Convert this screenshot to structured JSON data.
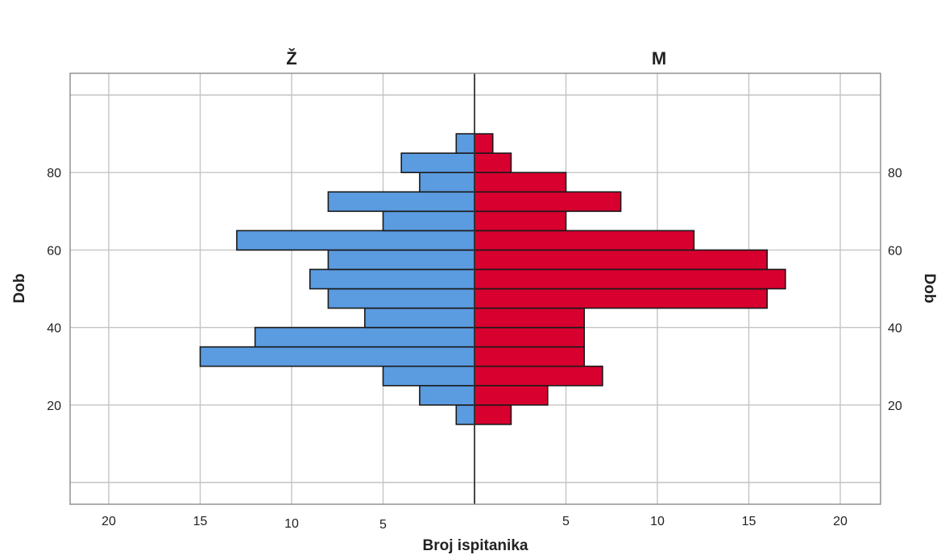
{
  "chart_data": {
    "type": "bar",
    "orientation": "horizontal",
    "ylabel": "Dob",
    "xlabel": "Broj ispitanika",
    "bin_width": 5,
    "ylim": [
      0,
      100
    ],
    "xlim": [
      0,
      20
    ],
    "y_ticks": [
      20,
      40,
      60,
      80
    ],
    "x_tick_labels": [
      "20",
      "15",
      "10",
      "5",
      "5",
      "10",
      "15",
      "20"
    ],
    "grid": true,
    "series": [
      {
        "name": "Ž",
        "color": "#5B9BE0",
        "bins": [
          {
            "age": 17.5,
            "count": 1
          },
          {
            "age": 22.5,
            "count": 3
          },
          {
            "age": 27.5,
            "count": 5
          },
          {
            "age": 32.5,
            "count": 15
          },
          {
            "age": 37.5,
            "count": 12
          },
          {
            "age": 42.5,
            "count": 6
          },
          {
            "age": 47.5,
            "count": 8
          },
          {
            "age": 52.5,
            "count": 9
          },
          {
            "age": 57.5,
            "count": 8
          },
          {
            "age": 62.5,
            "count": 13
          },
          {
            "age": 67.5,
            "count": 5
          },
          {
            "age": 72.5,
            "count": 8
          },
          {
            "age": 77.5,
            "count": 3
          },
          {
            "age": 82.5,
            "count": 4
          },
          {
            "age": 87.5,
            "count": 1
          }
        ]
      },
      {
        "name": "M",
        "color": "#D7002F",
        "bins": [
          {
            "age": 17.5,
            "count": 2
          },
          {
            "age": 22.5,
            "count": 4
          },
          {
            "age": 27.5,
            "count": 7
          },
          {
            "age": 32.5,
            "count": 6
          },
          {
            "age": 37.5,
            "count": 6
          },
          {
            "age": 42.5,
            "count": 6
          },
          {
            "age": 47.5,
            "count": 16
          },
          {
            "age": 52.5,
            "count": 17
          },
          {
            "age": 57.5,
            "count": 16
          },
          {
            "age": 62.5,
            "count": 12
          },
          {
            "age": 67.5,
            "count": 5
          },
          {
            "age": 72.5,
            "count": 8
          },
          {
            "age": 77.5,
            "count": 5
          },
          {
            "age": 82.5,
            "count": 2
          },
          {
            "age": 87.5,
            "count": 1
          }
        ]
      }
    ]
  }
}
